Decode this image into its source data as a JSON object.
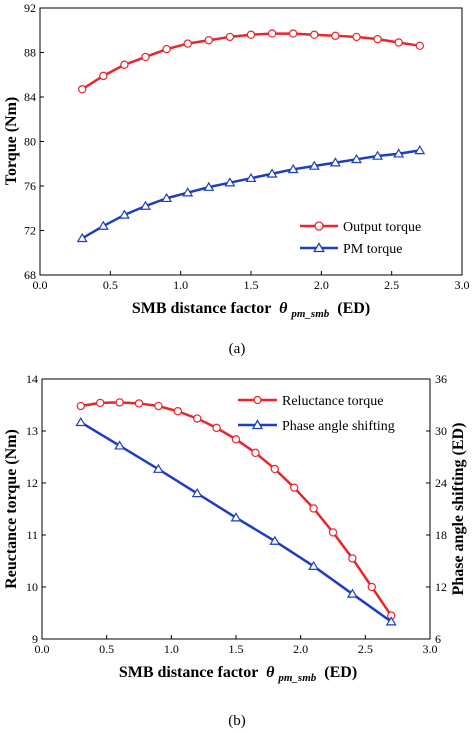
{
  "chart_data": [
    {
      "type": "line",
      "caption": "(a)",
      "xlabel": "SMB distance factor",
      "xlabel_symbol": "θ",
      "xlabel_sub": "pm_smb",
      "xlabel_unit": "(ED)",
      "ylabel": "Torque (Nm)",
      "xlim": [
        0.0,
        3.0
      ],
      "ylim": [
        68,
        92
      ],
      "xticks": [
        "0.0",
        "0.5",
        "1.0",
        "1.5",
        "2.0",
        "2.5",
        "3.0"
      ],
      "yticks": [
        "68",
        "72",
        "76",
        "80",
        "84",
        "88",
        "92"
      ],
      "legend_position": "bottom-right",
      "series": [
        {
          "name": "Output torque",
          "color": "#e8262b",
          "marker": "circle",
          "x": [
            0.3,
            0.45,
            0.6,
            0.75,
            0.9,
            1.05,
            1.2,
            1.35,
            1.5,
            1.65,
            1.8,
            1.95,
            2.1,
            2.25,
            2.4,
            2.55,
            2.7
          ],
          "y": [
            84.7,
            85.9,
            86.9,
            87.6,
            88.3,
            88.8,
            89.1,
            89.4,
            89.6,
            89.7,
            89.7,
            89.6,
            89.5,
            89.4,
            89.2,
            88.9,
            88.6
          ]
        },
        {
          "name": "PM torque",
          "color": "#1c3fbf",
          "marker": "triangle",
          "x": [
            0.3,
            0.45,
            0.6,
            0.75,
            0.9,
            1.05,
            1.2,
            1.35,
            1.5,
            1.65,
            1.8,
            1.95,
            2.1,
            2.25,
            2.4,
            2.55,
            2.7
          ],
          "y": [
            71.3,
            72.4,
            73.4,
            74.2,
            74.9,
            75.4,
            75.9,
            76.3,
            76.7,
            77.1,
            77.5,
            77.8,
            78.1,
            78.4,
            78.7,
            78.9,
            79.2
          ]
        }
      ]
    },
    {
      "type": "line",
      "caption": "(b)",
      "xlabel": "SMB distance factor",
      "xlabel_symbol": "θ",
      "xlabel_sub": "pm_smb",
      "xlabel_unit": "(ED)",
      "ylabel": "Reuctance torque (Nm)",
      "ylabel_right": "Phase angle shifting (ED)",
      "xlim": [
        0.0,
        3.0
      ],
      "ylim": [
        9,
        14
      ],
      "ylim_right": [
        6,
        36
      ],
      "xticks": [
        "0.0",
        "0.5",
        "1.0",
        "1.5",
        "2.0",
        "2.5",
        "3.0"
      ],
      "yticks": [
        "9",
        "10",
        "11",
        "12",
        "13",
        "14"
      ],
      "yticks_right": [
        "6",
        "12",
        "18",
        "24",
        "30",
        "36"
      ],
      "legend_position": "top-right",
      "series": [
        {
          "name": "Reluctance torque",
          "axis": "left",
          "color": "#e8262b",
          "marker": "circle",
          "x": [
            0.3,
            0.45,
            0.6,
            0.75,
            0.9,
            1.05,
            1.2,
            1.35,
            1.5,
            1.65,
            1.8,
            1.95,
            2.1,
            2.25,
            2.4,
            2.55,
            2.7
          ],
          "y": [
            13.48,
            13.54,
            13.55,
            13.53,
            13.48,
            13.38,
            13.24,
            13.06,
            12.84,
            12.58,
            12.27,
            11.91,
            11.51,
            11.05,
            10.55,
            10.0,
            9.45
          ]
        },
        {
          "name": "Phase angle shifting",
          "axis": "right",
          "color": "#1c3fbf",
          "marker": "triangle",
          "x": [
            0.3,
            0.6,
            0.9,
            1.2,
            1.5,
            1.8,
            2.1,
            2.4,
            2.7
          ],
          "y": [
            31.0,
            28.3,
            25.6,
            22.8,
            20.0,
            17.3,
            14.4,
            11.2,
            8.0
          ]
        }
      ]
    }
  ]
}
